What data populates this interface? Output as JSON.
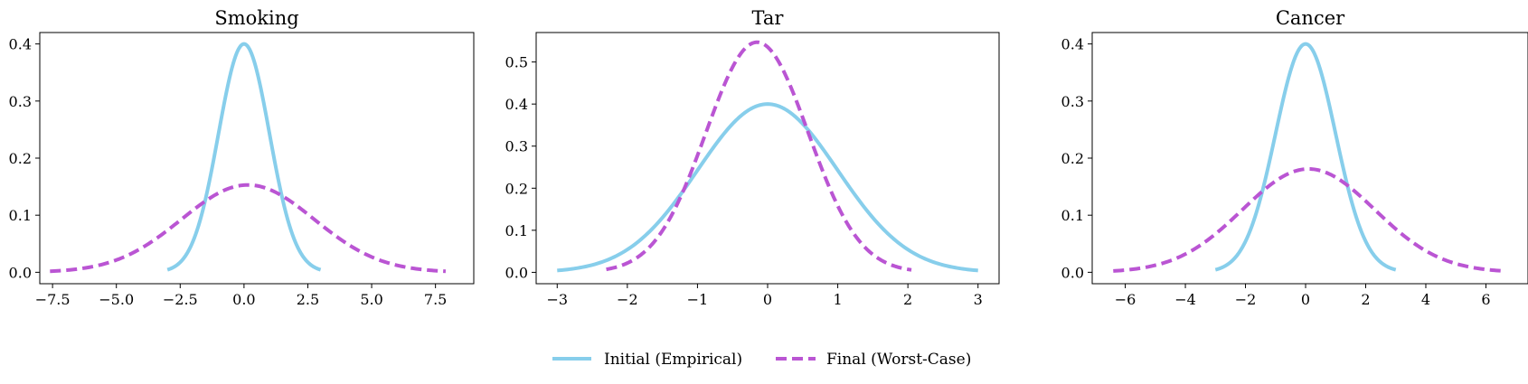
{
  "colors": {
    "initial": "#87CEEB",
    "final": "#BA55D3"
  },
  "legend": {
    "placement": "bottom-center",
    "entries": [
      {
        "label": "Initial (Empirical)",
        "style": "solid",
        "color": "#87CEEB"
      },
      {
        "label": "Final (Worst-Case)",
        "style": "dashed",
        "color": "#BA55D3"
      }
    ]
  },
  "chart_data": [
    {
      "type": "line",
      "title": "Smoking",
      "xlabel": "",
      "ylabel": "",
      "xlim": [
        -8.0,
        9.0
      ],
      "ylim": [
        -0.02,
        0.42
      ],
      "xticks": [
        -7.5,
        -5.0,
        -2.5,
        0.0,
        2.5,
        5.0,
        7.5
      ],
      "xtick_labels": [
        "−7.5",
        "−5.0",
        "−2.5",
        "0.0",
        "2.5",
        "5.0",
        "7.5"
      ],
      "yticks": [
        0.0,
        0.1,
        0.2,
        0.3,
        0.4
      ],
      "ytick_labels": [
        "0.0",
        "0.1",
        "0.2",
        "0.3",
        "0.4"
      ],
      "grid": false,
      "series": [
        {
          "name": "Initial (Empirical)",
          "kind": "normal-pdf",
          "mean": 0.0,
          "std": 1.0,
          "x_range": [
            -3.0,
            3.0
          ],
          "peak": 0.4
        },
        {
          "name": "Final (Worst-Case)",
          "kind": "normal-pdf",
          "mean": 0.15,
          "std": 2.6,
          "x_range": [
            -7.6,
            7.9
          ],
          "peak": 0.153
        }
      ]
    },
    {
      "type": "line",
      "title": "Tar",
      "xlabel": "",
      "ylabel": "",
      "xlim": [
        -3.3,
        3.3
      ],
      "ylim": [
        -0.027,
        0.57
      ],
      "xticks": [
        -3,
        -2,
        -1,
        0,
        1,
        2,
        3
      ],
      "xtick_labels": [
        "−3",
        "−2",
        "−1",
        "0",
        "1",
        "2",
        "3"
      ],
      "yticks": [
        0.0,
        0.1,
        0.2,
        0.3,
        0.4,
        0.5
      ],
      "ytick_labels": [
        "0.0",
        "0.1",
        "0.2",
        "0.3",
        "0.4",
        "0.5"
      ],
      "grid": false,
      "series": [
        {
          "name": "Initial (Empirical)",
          "kind": "normal-pdf",
          "mean": 0.0,
          "std": 1.0,
          "x_range": [
            -3.0,
            3.0
          ],
          "peak": 0.4
        },
        {
          "name": "Final (Worst-Case)",
          "kind": "normal-pdf",
          "mean": -0.15,
          "std": 0.73,
          "x_range": [
            -2.3,
            2.05
          ],
          "peak": 0.547
        }
      ]
    },
    {
      "type": "line",
      "title": "Cancer",
      "xlabel": "",
      "ylabel": "",
      "xlim": [
        -7.1,
        7.4
      ],
      "ylim": [
        -0.02,
        0.42
      ],
      "xticks": [
        -6,
        -4,
        -2,
        0,
        2,
        4,
        6
      ],
      "xtick_labels": [
        "−6",
        "−4",
        "−2",
        "0",
        "2",
        "4",
        "6"
      ],
      "yticks": [
        0.0,
        0.1,
        0.2,
        0.3,
        0.4
      ],
      "ytick_labels": [
        "0.0",
        "0.1",
        "0.2",
        "0.3",
        "0.4"
      ],
      "grid": false,
      "series": [
        {
          "name": "Initial (Empirical)",
          "kind": "normal-pdf",
          "mean": 0.0,
          "std": 1.0,
          "x_range": [
            -3.0,
            3.0
          ],
          "peak": 0.4
        },
        {
          "name": "Final (Worst-Case)",
          "kind": "normal-pdf",
          "mean": 0.1,
          "std": 2.2,
          "x_range": [
            -6.4,
            6.6
          ],
          "peak": 0.181
        }
      ]
    }
  ]
}
